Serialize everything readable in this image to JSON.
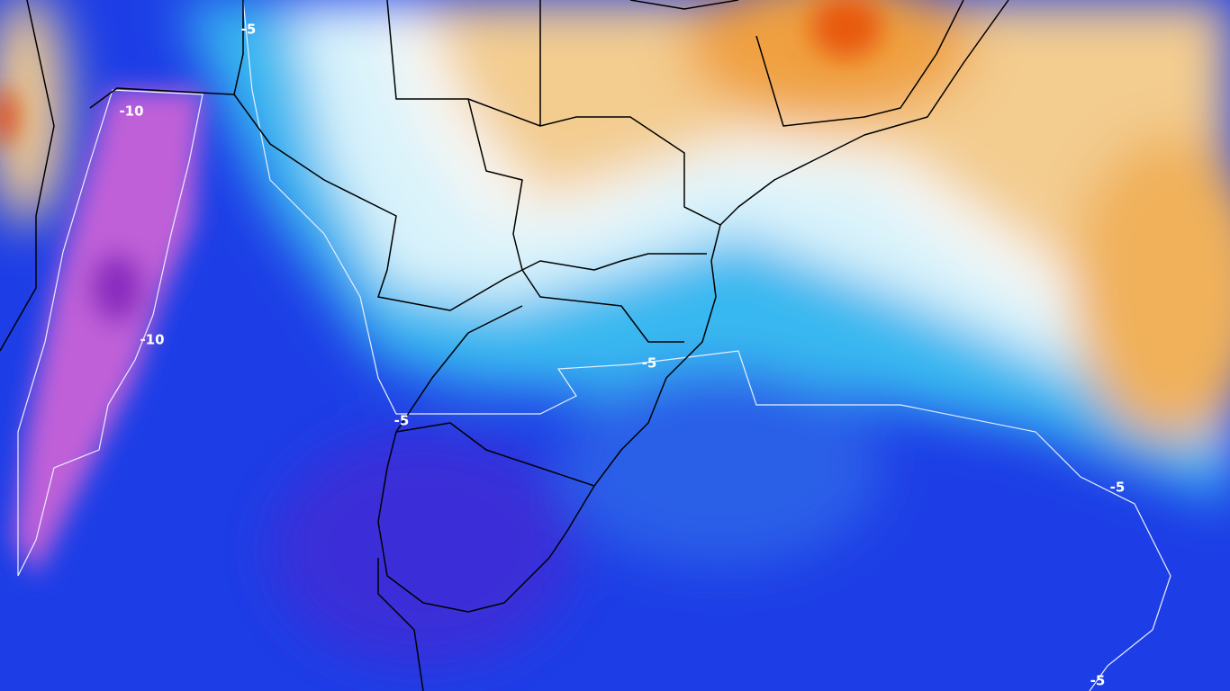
{
  "contour_labels": [
    "-5",
    "-10",
    "-10",
    "-5",
    "-5",
    "-5",
    "-5"
  ]
}
